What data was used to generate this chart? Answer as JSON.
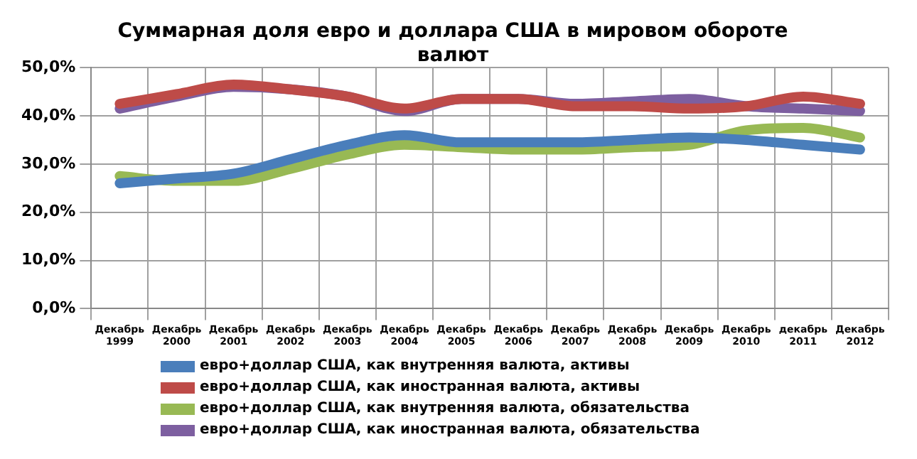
{
  "chart_data": {
    "type": "line",
    "title": [
      "Суммарная доля евро и доллара США в мировом обороте",
      "валют"
    ],
    "categories": [
      "Декабрь 1999",
      "Декабрь 2000",
      "Декабрь 2001",
      "Декабрь 2002",
      "Декабрь 2003",
      "Декабрь 2004",
      "Декабрь 2005",
      "Декабрь 2006",
      "Декабрь 2007",
      "Декабрь 2008",
      "Декабрь 2009",
      "Декабрь 2010",
      "декабрь 2011",
      "Декабрь 2012"
    ],
    "series": [
      {
        "name": "евро+доллар США, как внутренняя валюта, активы",
        "color": "#4a7ebb",
        "values": [
          26,
          27,
          28,
          31,
          34,
          36,
          34.5,
          34.5,
          34.5,
          35,
          35.5,
          35,
          34,
          33
        ]
      },
      {
        "name": "евро+доллар США, как иностранная валюта, активы",
        "color": "#be4b48",
        "values": [
          42.5,
          44.5,
          46.5,
          45.5,
          44,
          41.5,
          43.5,
          43.5,
          42,
          42,
          41.5,
          42,
          44,
          42.5
        ]
      },
      {
        "name": "евро+доллар США, как внутренняя валюта, обязательства",
        "color": "#98b954",
        "values": [
          27.5,
          26.5,
          26.5,
          29,
          32,
          34,
          33.5,
          33,
          33,
          33.5,
          34,
          37,
          37.5,
          35.5
        ]
      },
      {
        "name": "евро+доллар США, как иностранная валюта, обязательства",
        "color": "#7d5fa0",
        "values": [
          41.5,
          44,
          46,
          45.5,
          44,
          41,
          43.5,
          43.5,
          42.5,
          43,
          43.5,
          42,
          41.5,
          41
        ]
      }
    ],
    "ylim": [
      0,
      50
    ],
    "yticks": [
      {
        "value": 0,
        "label": "0,0%"
      },
      {
        "value": 10,
        "label": "10,0%"
      },
      {
        "value": 20,
        "label": "20,0%"
      },
      {
        "value": 30,
        "label": "30,0%"
      },
      {
        "value": 40,
        "label": "40,0%"
      },
      {
        "value": 50,
        "label": "50,0%"
      }
    ],
    "grid": true,
    "legend": "bottom",
    "marker": "none",
    "line_style": "solid"
  }
}
